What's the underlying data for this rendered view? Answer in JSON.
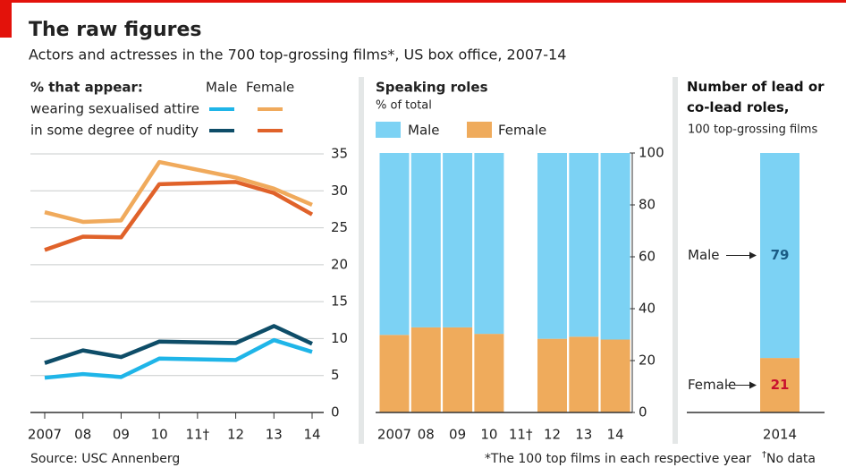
{
  "header": {
    "title": "The raw figures",
    "subtitle": "Actors and actresses in the 700 top-grossing films*, US box office, 2007-14"
  },
  "chart_data": [
    {
      "type": "line",
      "title": "% that appear:",
      "legend": {
        "columns": [
          "Male",
          "Female"
        ],
        "rows": [
          "wearing sexualised attire",
          "in some degree of nudity"
        ]
      },
      "x": [
        2007,
        2008,
        2009,
        2010,
        2012,
        2013,
        2014
      ],
      "xlim": [
        2007,
        2014
      ],
      "xticks": [
        {
          "value": 2007,
          "label": "2007"
        },
        {
          "value": 2008,
          "label": "08"
        },
        {
          "value": 2009,
          "label": "09"
        },
        {
          "value": 2010,
          "label": "10"
        },
        {
          "value": 2011,
          "label": "11†"
        },
        {
          "value": 2012,
          "label": "12"
        },
        {
          "value": 2013,
          "label": "13"
        },
        {
          "value": 2014,
          "label": "14"
        }
      ],
      "series": [
        {
          "color": "#1fb5e8",
          "values": [
            4.7,
            5.2,
            4.8,
            7.3,
            7.1,
            9.8,
            8.2
          ]
        },
        {
          "color": "#f0aa5c",
          "values": [
            27.1,
            25.8,
            26.0,
            33.9,
            31.8,
            30.3,
            28.1
          ]
        },
        {
          "color": "#0e4d68",
          "values": [
            6.7,
            8.4,
            7.5,
            9.6,
            9.4,
            11.7,
            9.3
          ]
        },
        {
          "color": "#e0622a",
          "values": [
            22.0,
            23.8,
            23.7,
            30.9,
            31.2,
            29.7,
            26.8
          ]
        }
      ],
      "ylim": [
        0,
        35
      ],
      "yticks": [
        0,
        5,
        10,
        15,
        20,
        25,
        30,
        35
      ],
      "grid": true
    },
    {
      "type": "stacked_bar",
      "title": "Speaking roles",
      "subtitle": "% of total",
      "categories": [
        "2007",
        "08",
        "09",
        "10",
        "11†",
        "12",
        "13",
        "14"
      ],
      "series": [
        {
          "name": "Female",
          "color": "#efab5c",
          "values": [
            29.9,
            32.8,
            32.8,
            30.3,
            null,
            28.4,
            29.2,
            28.1
          ]
        },
        {
          "name": "Male",
          "color": "#7cd2f4",
          "values": [
            70.1,
            67.2,
            67.2,
            69.7,
            null,
            71.6,
            70.8,
            71.9
          ]
        }
      ],
      "ylim": [
        0,
        100
      ],
      "yticks": [
        0,
        20,
        40,
        60,
        80,
        100
      ],
      "grid": false
    },
    {
      "type": "stacked_bar",
      "title": "Number of lead or co-lead roles, 2014",
      "subtitle": "100 top-grossing films",
      "categories": [
        "2014"
      ],
      "series": [
        {
          "name": "Female",
          "color": "#efab5c",
          "label_color": "#c8102e",
          "values": [
            21
          ]
        },
        {
          "name": "Male",
          "color": "#7cd2f4",
          "label_color": "#1a5c85",
          "values": [
            79
          ]
        }
      ],
      "ylim": [
        0,
        100
      ]
    }
  ],
  "footer": {
    "source": "Source: USC Annenberg",
    "note": "*The 100 top films in each respective year",
    "dagger": "†",
    "no_data": "No data"
  }
}
